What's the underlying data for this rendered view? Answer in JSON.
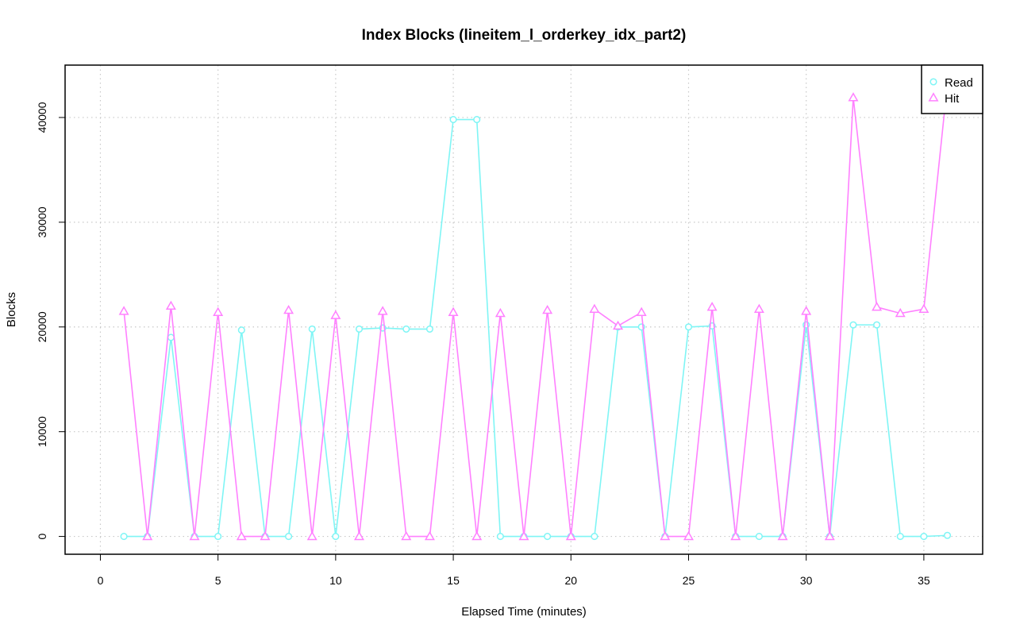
{
  "chart_data": {
    "type": "line",
    "title": "Index Blocks (lineitem_l_orderkey_idx_part2)",
    "xlabel": "Elapsed Time (minutes)",
    "ylabel": "Blocks",
    "xlim": [
      -1.5,
      37.5
    ],
    "ylim": [
      -1700,
      45000
    ],
    "x_ticks": [
      0,
      5,
      10,
      15,
      20,
      25,
      30,
      35
    ],
    "y_ticks": [
      0,
      10000,
      20000,
      30000,
      40000
    ],
    "grid": true,
    "legend_position": "top-right",
    "x": [
      1,
      2,
      3,
      4,
      5,
      6,
      7,
      8,
      9,
      10,
      11,
      12,
      13,
      14,
      15,
      16,
      17,
      18,
      19,
      20,
      21,
      22,
      23,
      24,
      25,
      26,
      27,
      28,
      29,
      30,
      31,
      32,
      33,
      34,
      35,
      36
    ],
    "series": [
      {
        "name": "Read",
        "color": "#7ff5f5",
        "marker": "circle",
        "values": [
          0,
          0,
          19000,
          0,
          0,
          19700,
          0,
          0,
          19800,
          0,
          19800,
          19900,
          19800,
          19800,
          39800,
          39800,
          0,
          0,
          0,
          0,
          0,
          20000,
          20000,
          0,
          20000,
          20100,
          0,
          0,
          0,
          20200,
          0,
          20200,
          20200,
          0,
          0,
          100
        ]
      },
      {
        "name": "Hit",
        "color": "#ff80ff",
        "marker": "triangle",
        "values": [
          21500,
          0,
          22000,
          0,
          21400,
          0,
          0,
          21600,
          0,
          21100,
          0,
          21500,
          0,
          0,
          21400,
          0,
          21300,
          0,
          21600,
          0,
          21700,
          20100,
          21400,
          0,
          0,
          21900,
          0,
          21700,
          0,
          21500,
          0,
          41900,
          21900,
          21300,
          21700,
          43200
        ]
      }
    ]
  }
}
